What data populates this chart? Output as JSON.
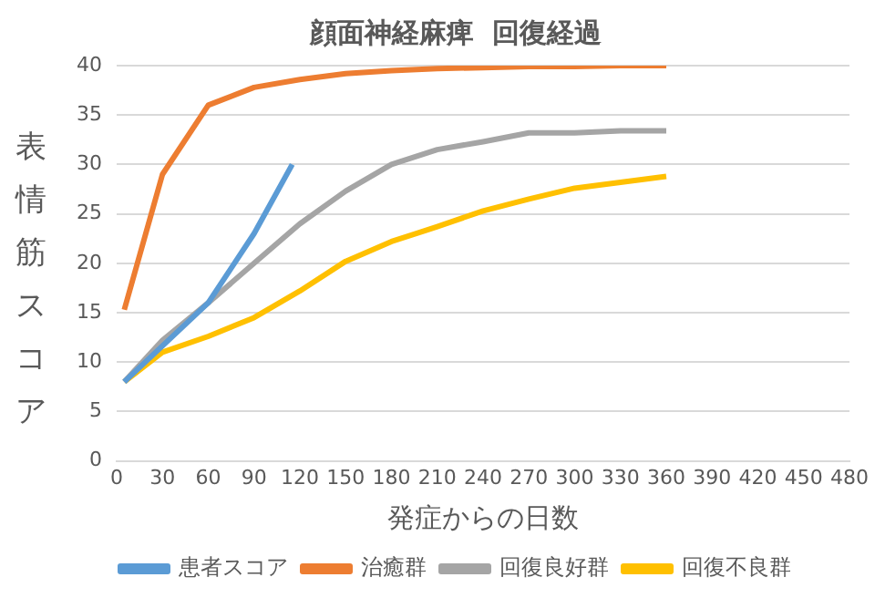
{
  "chart_data": {
    "type": "line",
    "title": "顔面神経麻痺  回復経過",
    "xlabel": "発症からの日数",
    "ylabel": "表情筋スコア",
    "xlim": [
      0,
      480
    ],
    "xticks": [
      0,
      30,
      60,
      90,
      120,
      150,
      180,
      210,
      240,
      270,
      300,
      330,
      360,
      390,
      420,
      450,
      480
    ],
    "ylim": [
      0,
      40
    ],
    "yticks": [
      0,
      5,
      10,
      15,
      20,
      25,
      30,
      35,
      40
    ],
    "grid": "y",
    "legend": "bottom",
    "marker": "none",
    "series": [
      {
        "name": "患者スコア",
        "color": "#5b9bd5",
        "x": [
          5,
          60,
          90,
          115
        ],
        "values": [
          8,
          16,
          23,
          30
        ]
      },
      {
        "name": "治癒群",
        "color": "#ed7d31",
        "x": [
          5,
          30,
          60,
          90,
          120,
          150,
          180,
          210,
          240,
          270,
          300,
          330,
          360
        ],
        "values": [
          15.3,
          29,
          36,
          37.8,
          38.6,
          39.2,
          39.5,
          39.7,
          39.8,
          39.9,
          39.9,
          40,
          40
        ]
      },
      {
        "name": "回復良好群",
        "color": "#a5a5a5",
        "x": [
          5,
          30,
          60,
          90,
          120,
          150,
          180,
          210,
          240,
          270,
          300,
          330,
          360
        ],
        "values": [
          8,
          12.2,
          16,
          20,
          24,
          27.3,
          30,
          31.5,
          32.3,
          33.2,
          33.2,
          33.4,
          33.4
        ]
      },
      {
        "name": "回復不良群",
        "color": "#ffc000",
        "x": [
          5,
          30,
          60,
          90,
          120,
          150,
          180,
          210,
          240,
          270,
          300,
          330,
          360
        ],
        "values": [
          8,
          11,
          12.6,
          14.5,
          17.2,
          20.2,
          22.2,
          23.7,
          25.3,
          26.5,
          27.6,
          28.2,
          28.8
        ]
      }
    ]
  }
}
